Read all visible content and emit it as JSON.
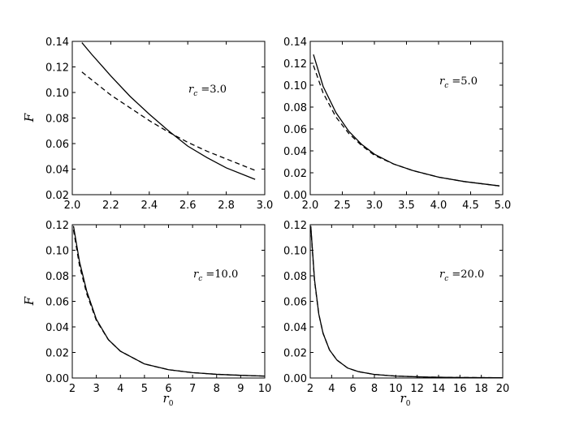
{
  "chart_data": [
    {
      "type": "line",
      "annotation": {
        "var": "r",
        "sub": "c",
        "value": "=3.0"
      },
      "ylabel": "F",
      "xlabel": "",
      "xlim": [
        2.0,
        3.0
      ],
      "ylim": [
        0.02,
        0.14
      ],
      "xticks": [
        "2.0",
        "2.2",
        "2.4",
        "2.6",
        "2.8",
        "3.0"
      ],
      "yticks": [
        "0.02",
        "0.04",
        "0.06",
        "0.08",
        "0.10",
        "0.12",
        "0.14"
      ],
      "series": [
        {
          "style": "solid",
          "x": [
            2.05,
            2.1,
            2.2,
            2.3,
            2.4,
            2.5,
            2.6,
            2.7,
            2.8,
            2.95
          ],
          "y": [
            0.139,
            0.13,
            0.113,
            0.097,
            0.083,
            0.07,
            0.058,
            0.049,
            0.041,
            0.032
          ]
        },
        {
          "style": "dashed",
          "x": [
            2.05,
            2.1,
            2.2,
            2.3,
            2.4,
            2.5,
            2.6,
            2.7,
            2.8,
            2.95
          ],
          "y": [
            0.116,
            0.11,
            0.098,
            0.088,
            0.078,
            0.069,
            0.061,
            0.054,
            0.048,
            0.039
          ]
        }
      ]
    },
    {
      "type": "line",
      "annotation": {
        "var": "r",
        "sub": "c",
        "value": "=5.0"
      },
      "ylabel": "",
      "xlabel": "",
      "xlim": [
        2.0,
        5.0
      ],
      "ylim": [
        0.0,
        0.14
      ],
      "xticks": [
        "2.0",
        "2.5",
        "3.0",
        "3.5",
        "4.0",
        "4.5",
        "5.0"
      ],
      "yticks": [
        "0.00",
        "0.02",
        "0.04",
        "0.06",
        "0.08",
        "0.10",
        "0.12",
        "0.14"
      ],
      "series": [
        {
          "style": "solid",
          "x": [
            2.05,
            2.2,
            2.4,
            2.6,
            2.8,
            3.0,
            3.3,
            3.6,
            4.0,
            4.4,
            4.95
          ],
          "y": [
            0.128,
            0.099,
            0.075,
            0.058,
            0.046,
            0.037,
            0.028,
            0.022,
            0.016,
            0.012,
            0.008
          ]
        },
        {
          "style": "dashed",
          "x": [
            2.05,
            2.2,
            2.4,
            2.6,
            2.8,
            3.0,
            3.3,
            3.6,
            4.0,
            4.4,
            4.95
          ],
          "y": [
            0.118,
            0.093,
            0.071,
            0.056,
            0.045,
            0.036,
            0.028,
            0.022,
            0.016,
            0.012,
            0.008
          ]
        }
      ]
    },
    {
      "type": "line",
      "annotation": {
        "var": "r",
        "sub": "c",
        "value": "=10.0"
      },
      "ylabel": "F",
      "xlabel": "r0",
      "xlim": [
        2,
        10
      ],
      "ylim": [
        0.0,
        0.12
      ],
      "xticks": [
        "2",
        "3",
        "4",
        "5",
        "6",
        "7",
        "8",
        "9",
        "10"
      ],
      "yticks": [
        "0.00",
        "0.02",
        "0.04",
        "0.06",
        "0.08",
        "0.10",
        "0.12"
      ],
      "series": [
        {
          "style": "solid",
          "x": [
            2.05,
            2.3,
            2.6,
            3.0,
            3.5,
            4.0,
            5.0,
            6.0,
            7.0,
            8.0,
            9.0,
            10.0
          ],
          "y": [
            0.119,
            0.091,
            0.068,
            0.046,
            0.03,
            0.021,
            0.011,
            0.0065,
            0.0042,
            0.0029,
            0.0021,
            0.0015
          ]
        },
        {
          "style": "dashed",
          "x": [
            2.05,
            2.3,
            2.6,
            3.0,
            3.5,
            4.0,
            5.0,
            6.0,
            7.0,
            8.0,
            9.0,
            10.0
          ],
          "y": [
            0.116,
            0.088,
            0.066,
            0.045,
            0.03,
            0.021,
            0.011,
            0.0065,
            0.0042,
            0.0029,
            0.0021,
            0.0015
          ]
        }
      ]
    },
    {
      "type": "line",
      "annotation": {
        "var": "r",
        "sub": "c",
        "value": "=20.0"
      },
      "ylabel": "",
      "xlabel": "r0",
      "xlim": [
        2,
        20
      ],
      "ylim": [
        0.0,
        0.12
      ],
      "xticks": [
        "2",
        "4",
        "6",
        "8",
        "10",
        "12",
        "14",
        "16",
        "18",
        "20"
      ],
      "yticks": [
        "0.00",
        "0.02",
        "0.04",
        "0.06",
        "0.08",
        "0.10",
        "0.12"
      ],
      "series": [
        {
          "style": "solid",
          "x": [
            2.05,
            2.4,
            2.8,
            3.2,
            3.8,
            4.5,
            5.5,
            6.5,
            8.0,
            10.0,
            13.0,
            16.0,
            20.0
          ],
          "y": [
            0.119,
            0.077,
            0.05,
            0.035,
            0.022,
            0.014,
            0.0078,
            0.005,
            0.0028,
            0.0015,
            0.0007,
            0.0004,
            0.0002
          ]
        },
        {
          "style": "dashed",
          "x": [
            2.05,
            2.4,
            2.8,
            3.2,
            3.8,
            4.5,
            5.5,
            6.5,
            8.0,
            10.0,
            13.0,
            16.0,
            20.0
          ],
          "y": [
            0.118,
            0.076,
            0.05,
            0.035,
            0.022,
            0.014,
            0.0078,
            0.005,
            0.0028,
            0.0015,
            0.0007,
            0.0004,
            0.0002
          ]
        }
      ]
    }
  ]
}
